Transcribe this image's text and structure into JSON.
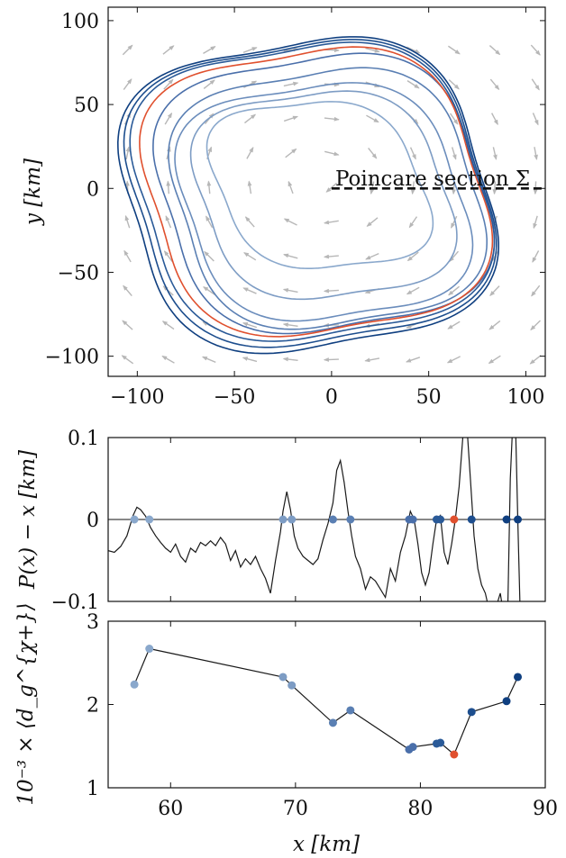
{
  "chart_data": [
    {
      "type": "line",
      "panel": "phase-plane",
      "xlim": [
        -115,
        110
      ],
      "ylim": [
        -112,
        108
      ],
      "xticks": [
        -100,
        -50,
        0,
        50,
        100
      ],
      "yticks": [
        -100,
        -50,
        0,
        50,
        100
      ],
      "xtick_labels": [
        "−100",
        "−50",
        "0",
        "50",
        "100"
      ],
      "ytick_labels": [
        "−100",
        "−50",
        "0",
        "50",
        "100"
      ],
      "ylabel": "y [km]",
      "annotation": "Poincare section Σ",
      "section": {
        "x": [
          0,
          110
        ],
        "y": 0
      },
      "grid": false,
      "vector_field_color": "#b7b7b7",
      "orbits": [
        {
          "color": "#8aa8cc",
          "cx": -6,
          "cy": 2,
          "a": 60,
          "b": 52
        },
        {
          "color": "#7d9cc4",
          "cx": -4,
          "cy": -4,
          "a": 70,
          "b": 66
        },
        {
          "color": "#6b8dbc",
          "cx": -4,
          "cy": -8,
          "a": 78,
          "b": 76
        },
        {
          "color": "#5a7fb3",
          "cx": -2,
          "cy": -6,
          "a": 83,
          "b": 84
        },
        {
          "color": "#4a6faa",
          "cx": -4,
          "cy": -3,
          "a": 89,
          "b": 90
        },
        {
          "color": "#e0502e",
          "cx": -8,
          "cy": -2,
          "a": 92,
          "b": 93
        },
        {
          "color": "#2a5a98",
          "cx": -10,
          "cy": -2,
          "a": 95,
          "b": 96
        },
        {
          "color": "#1d4e8e",
          "cx": -11,
          "cy": -3,
          "a": 97,
          "b": 99
        },
        {
          "color": "#0f3f80",
          "cx": -12,
          "cy": -4,
          "a": 99,
          "b": 102
        }
      ]
    },
    {
      "type": "line",
      "panel": "return-map-difference",
      "xlim": [
        55,
        90
      ],
      "ylim": [
        -0.1,
        0.1
      ],
      "yticks": [
        -0.1,
        0,
        0.1
      ],
      "ytick_labels": [
        "−0.1",
        "0",
        "0.1"
      ],
      "ylabel": "P(x) − x [km]",
      "x": [
        55,
        55.5,
        56,
        56.5,
        57,
        57.3,
        57.6,
        58,
        58.4,
        58.8,
        59.2,
        59.6,
        60,
        60.4,
        60.8,
        61.2,
        61.6,
        62,
        62.4,
        62.8,
        63.2,
        63.6,
        64,
        64.4,
        64.8,
        65.2,
        65.6,
        66,
        66.4,
        66.8,
        67.2,
        67.6,
        68,
        68.4,
        68.8,
        69,
        69.3,
        69.6,
        69.9,
        70.2,
        70.6,
        71,
        71.4,
        71.8,
        72.2,
        72.6,
        73,
        73.3,
        73.6,
        73.9,
        74.2,
        74.5,
        74.8,
        75.2,
        75.6,
        76,
        76.4,
        76.8,
        77.2,
        77.6,
        78,
        78.4,
        78.8,
        79.2,
        79.5,
        79.8,
        80.1,
        80.4,
        80.7,
        81,
        81.3,
        81.6,
        81.9,
        82.2,
        82.5,
        82.8,
        83.1,
        83.4,
        83.7,
        84,
        84.3,
        84.6,
        84.9,
        85.2,
        85.5,
        85.8,
        86.1,
        86.4,
        86.7,
        87,
        87.2,
        87.4,
        87.6,
        87.8,
        88,
        88.2,
        88.5,
        88.8,
        89.1,
        89.4,
        89.7,
        90
      ],
      "y": [
        -0.038,
        -0.04,
        -0.033,
        -0.02,
        0.005,
        0.015,
        0.012,
        0.004,
        -0.01,
        -0.02,
        -0.028,
        -0.035,
        -0.04,
        -0.03,
        -0.045,
        -0.052,
        -0.035,
        -0.04,
        -0.028,
        -0.032,
        -0.026,
        -0.032,
        -0.022,
        -0.03,
        -0.05,
        -0.038,
        -0.058,
        -0.048,
        -0.055,
        -0.045,
        -0.06,
        -0.072,
        -0.09,
        -0.05,
        -0.015,
        0.01,
        0.034,
        0.012,
        -0.02,
        -0.035,
        -0.045,
        -0.05,
        -0.055,
        -0.048,
        -0.025,
        -0.005,
        0.02,
        0.06,
        0.072,
        0.045,
        0.01,
        -0.02,
        -0.045,
        -0.06,
        -0.085,
        -0.07,
        -0.075,
        -0.085,
        -0.095,
        -0.06,
        -0.075,
        -0.04,
        -0.02,
        0.01,
        0.0,
        -0.03,
        -0.065,
        -0.08,
        -0.065,
        -0.03,
        0.0,
        0.005,
        -0.04,
        -0.055,
        -0.03,
        0.0,
        0.04,
        0.1,
        0.12,
        0.05,
        -0.02,
        -0.06,
        -0.08,
        -0.09,
        -0.11,
        -0.12,
        -0.105,
        -0.09,
        -0.12,
        -0.11,
        0.05,
        0.12,
        0.13,
        0.0,
        -0.12,
        -0.13,
        -0.12,
        -0.11,
        -0.12,
        -0.13,
        -0.12,
        -0.12
      ],
      "zeros": [
        {
          "x": 57.1,
          "color": "#8aa8cc"
        },
        {
          "x": 58.3,
          "color": "#8aa8cc"
        },
        {
          "x": 69.0,
          "color": "#7d9cc4"
        },
        {
          "x": 69.7,
          "color": "#7d9cc4"
        },
        {
          "x": 73.0,
          "color": "#5a7fb3"
        },
        {
          "x": 74.4,
          "color": "#5a7fb3"
        },
        {
          "x": 79.1,
          "color": "#4a6faa"
        },
        {
          "x": 79.4,
          "color": "#4a6faa"
        },
        {
          "x": 81.3,
          "color": "#2a5a98"
        },
        {
          "x": 81.6,
          "color": "#2a5a98"
        },
        {
          "x": 82.7,
          "color": "#e0502e"
        },
        {
          "x": 84.1,
          "color": "#1d4e8e"
        },
        {
          "x": 86.9,
          "color": "#0f3f80"
        },
        {
          "x": 87.8,
          "color": "#0f3f80"
        }
      ]
    },
    {
      "type": "line",
      "panel": "average-distance",
      "xlim": [
        55,
        90
      ],
      "ylim": [
        1,
        3
      ],
      "xticks": [
        60,
        70,
        80,
        90
      ],
      "yticks": [
        1,
        2,
        3
      ],
      "xtick_labels": [
        "60",
        "70",
        "80",
        "90"
      ],
      "ytick_labels": [
        "1",
        "2",
        "3"
      ],
      "xlabel": "x [km]",
      "ylabel": "10⁻³ × ⟨d_g^{χ+}⟩",
      "points": [
        {
          "x": 57.1,
          "y": 2.24,
          "color": "#8aa8cc"
        },
        {
          "x": 58.3,
          "y": 2.67,
          "color": "#8aa8cc"
        },
        {
          "x": 69.0,
          "y": 2.33,
          "color": "#7d9cc4"
        },
        {
          "x": 69.7,
          "y": 2.23,
          "color": "#7d9cc4"
        },
        {
          "x": 73.0,
          "y": 1.78,
          "color": "#5a7fb3"
        },
        {
          "x": 74.4,
          "y": 1.93,
          "color": "#5a7fb3"
        },
        {
          "x": 79.1,
          "y": 1.46,
          "color": "#4a6faa"
        },
        {
          "x": 79.4,
          "y": 1.49,
          "color": "#4a6faa"
        },
        {
          "x": 81.3,
          "y": 1.53,
          "color": "#2a5a98"
        },
        {
          "x": 81.6,
          "y": 1.54,
          "color": "#2a5a98"
        },
        {
          "x": 82.7,
          "y": 1.4,
          "color": "#e0502e"
        },
        {
          "x": 84.1,
          "y": 1.91,
          "color": "#1d4e8e"
        },
        {
          "x": 86.9,
          "y": 2.04,
          "color": "#0f3f80"
        },
        {
          "x": 87.8,
          "y": 2.33,
          "color": "#0f3f80"
        }
      ]
    }
  ]
}
